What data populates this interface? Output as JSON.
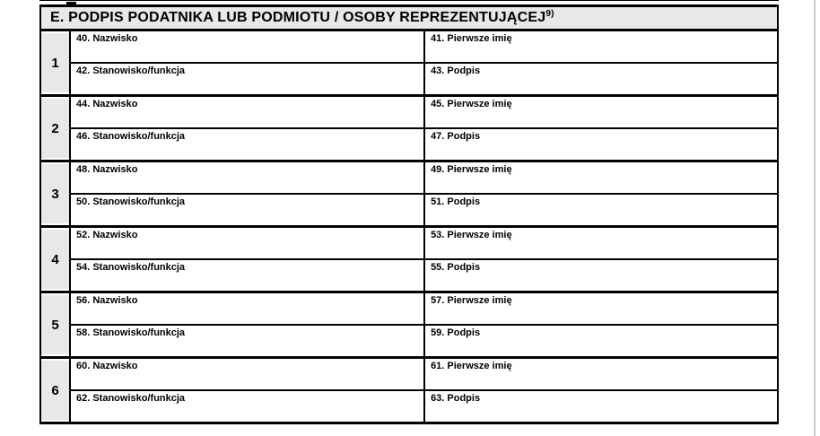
{
  "section": {
    "title": "E. PODPIS PODATNIKA LUB PODMIOTU / OSOBY REPREZENTUJĄCEJ",
    "title_sup": "9)"
  },
  "form_table": {
    "rows": [
      {
        "number": "1",
        "surname_label": "40. Nazwisko",
        "first_name_label": "41. Pierwsze imię",
        "position_label": "42. Stanowisko/funkcja",
        "signature_label": "43. Podpis"
      },
      {
        "number": "2",
        "surname_label": "44. Nazwisko",
        "first_name_label": "45. Pierwsze imię",
        "position_label": "46. Stanowisko/funkcja",
        "signature_label": "47. Podpis"
      },
      {
        "number": "3",
        "surname_label": "48. Nazwisko",
        "first_name_label": "49. Pierwsze imię",
        "position_label": "50. Stanowisko/funkcja",
        "signature_label": "51. Podpis"
      },
      {
        "number": "4",
        "surname_label": "52. Nazwisko",
        "first_name_label": "53. Pierwsze imię",
        "position_label": "54. Stanowisko/funkcja",
        "signature_label": "55. Podpis"
      },
      {
        "number": "5",
        "surname_label": "56. Nazwisko",
        "first_name_label": "57. Pierwsze imię",
        "position_label": "58. Stanowisko/funkcja",
        "signature_label": "59. Podpis"
      },
      {
        "number": "6",
        "surname_label": "60. Nazwisko",
        "first_name_label": "61. Pierwsze imię",
        "position_label": "62. Stanowisko/funkcja",
        "signature_label": "63. Podpis"
      }
    ]
  },
  "colors": {
    "header_bg": "#e8e8e6",
    "row_number_bg": "#e8e8e6",
    "border": "#000000",
    "page_edge_line": "#cacaca"
  }
}
